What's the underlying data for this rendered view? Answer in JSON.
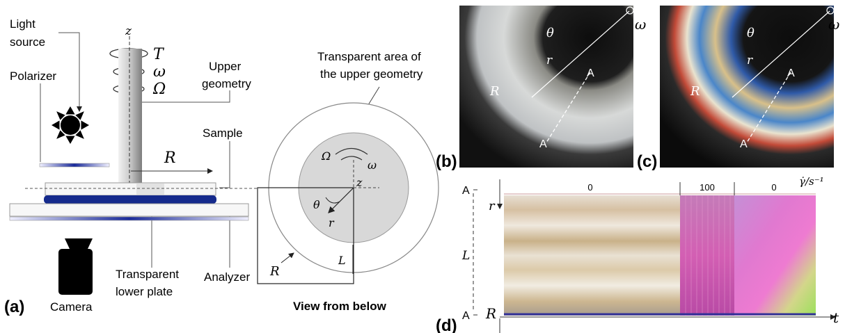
{
  "panel_a": {
    "letter": "(a)",
    "labels": {
      "light_source_1": "Light",
      "light_source_2": "source",
      "polarizer": "Polarizer",
      "upper_geometry_1": "Upper",
      "upper_geometry_2": "geometry",
      "sample": "Sample",
      "lower_plate_1": "Transparent",
      "lower_plate_2": "lower plate",
      "analyzer": "Analyzer",
      "camera": "Camera"
    },
    "symbols": {
      "z": "z",
      "T": "T",
      "omega": "ω",
      "Omega": "Ω",
      "R": "R"
    }
  },
  "view_from_below": {
    "title": "View from below",
    "transparent_area_1": "Transparent area of",
    "transparent_area_2": "the upper geometry",
    "symbols": {
      "Omega": "Ω",
      "omega": "ω",
      "z": "z",
      "theta": "θ",
      "r": "r",
      "R": "R",
      "L": "L"
    }
  },
  "panel_b": {
    "letter": "(b)",
    "theta": "θ",
    "omega": "ω",
    "r": "r",
    "R": "R",
    "A_top": "A",
    "A_bot": "A"
  },
  "panel_c": {
    "letter": "(c)",
    "theta": "θ",
    "omega": "ω",
    "r": "r",
    "R": "R",
    "A_top": "A",
    "A_bot": "A"
  },
  "panel_d": {
    "letter": "(d)",
    "segments": [
      "0",
      "100",
      "0"
    ],
    "shear_rate_label": "γ̇/s⁻¹",
    "A_top": "A",
    "A_bot": "A",
    "L": "L",
    "r": "r",
    "R": "R",
    "t": "t"
  },
  "colors": {
    "navy": "#0e1a7a",
    "sample_blue": "#152a8c",
    "pink": "#d04fb0"
  }
}
